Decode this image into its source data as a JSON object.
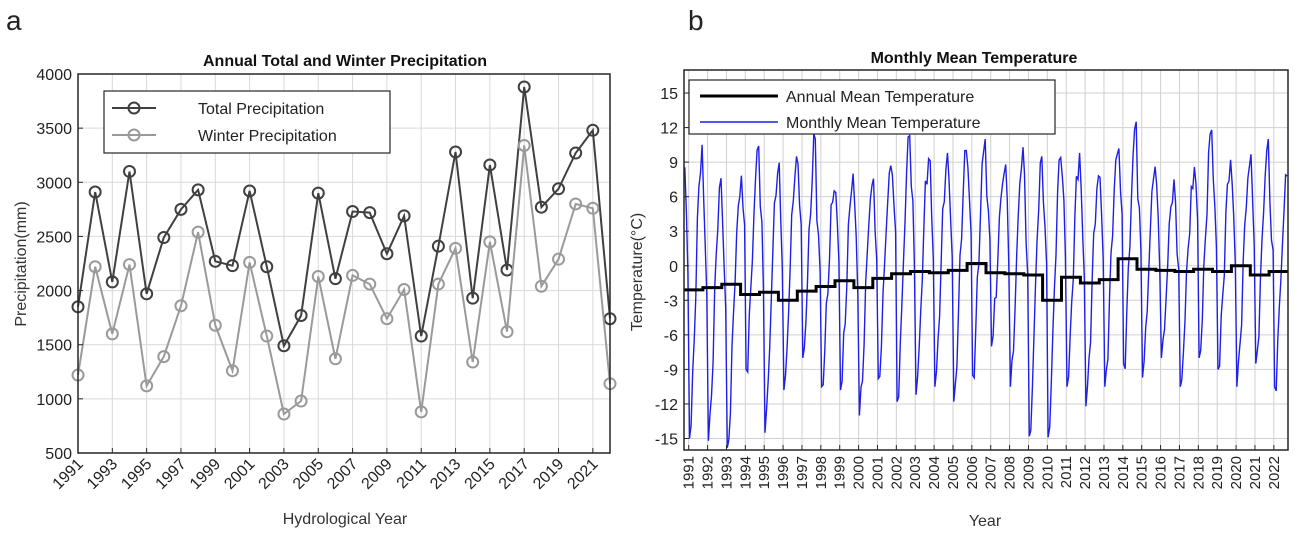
{
  "panels": {
    "a": {
      "letter": "a"
    },
    "b": {
      "letter": "b"
    }
  },
  "chart_data": [
    {
      "id": "a",
      "type": "line",
      "title": "Annual Total and Winter Precipitation",
      "xlabel": "Hydrological Year",
      "ylabel": "Precipitation(mm)",
      "xlim": [
        1991,
        2022
      ],
      "ylim": [
        500,
        4000
      ],
      "yticks": [
        500,
        1000,
        1500,
        2000,
        2500,
        3000,
        3500,
        4000
      ],
      "xticks": [
        1991,
        1993,
        1995,
        1997,
        1999,
        2001,
        2003,
        2005,
        2007,
        2009,
        2011,
        2013,
        2015,
        2017,
        2019,
        2021
      ],
      "grid": true,
      "legend": "top-left",
      "x": [
        1991,
        1992,
        1993,
        1994,
        1995,
        1996,
        1997,
        1998,
        1999,
        2000,
        2001,
        2002,
        2003,
        2004,
        2005,
        2006,
        2007,
        2008,
        2009,
        2010,
        2011,
        2012,
        2013,
        2014,
        2015,
        2016,
        2017,
        2018,
        2019,
        2020,
        2021,
        2022
      ],
      "series": [
        {
          "name": "Total Precipitation",
          "color": "#404040",
          "values": [
            1850,
            2910,
            2080,
            3100,
            1970,
            2490,
            2750,
            2930,
            2270,
            2230,
            2920,
            2220,
            1490,
            1770,
            2900,
            2110,
            2730,
            2720,
            2340,
            2690,
            1580,
            2410,
            3280,
            1930,
            3160,
            2190,
            3880,
            2770,
            2940,
            3270,
            3480,
            1740
          ]
        },
        {
          "name": "Winter Precipitation",
          "color": "#9a9a9a",
          "values": [
            1220,
            2220,
            1600,
            2240,
            1120,
            1390,
            1860,
            2540,
            1680,
            1260,
            2260,
            1580,
            860,
            980,
            2130,
            1370,
            2140,
            2060,
            1740,
            2010,
            880,
            2060,
            2390,
            1340,
            2450,
            1620,
            3340,
            2040,
            2290,
            2800,
            2760,
            1140
          ]
        }
      ]
    },
    {
      "id": "b",
      "type": "line",
      "title": "Monthly Mean Temperature",
      "xlabel": "Year",
      "ylabel": "Temperature(°C)",
      "xlim": [
        1990.75,
        2022.75
      ],
      "ylim": [
        -16,
        17
      ],
      "yticks": [
        -15,
        -12,
        -9,
        -6,
        -3,
        0,
        3,
        6,
        9,
        12,
        15
      ],
      "xticks": [
        1991,
        1992,
        1993,
        1994,
        1995,
        1996,
        1997,
        1998,
        1999,
        2000,
        2001,
        2002,
        2003,
        2004,
        2005,
        2006,
        2007,
        2008,
        2009,
        2010,
        2011,
        2012,
        2013,
        2014,
        2015,
        2016,
        2017,
        2018,
        2019,
        2020,
        2021,
        2022
      ],
      "grid": true,
      "legend": "top-left",
      "annual_series": {
        "name": "Annual Mean Temperature",
        "color": "#000000",
        "years": [
          1991,
          1992,
          1993,
          1994,
          1995,
          1996,
          1997,
          1998,
          1999,
          2000,
          2001,
          2002,
          2003,
          2004,
          2005,
          2006,
          2007,
          2008,
          2009,
          2010,
          2011,
          2012,
          2013,
          2014,
          2015,
          2016,
          2017,
          2018,
          2019,
          2020,
          2021,
          2022
        ],
        "values": [
          -2.1,
          -1.9,
          -1.6,
          -2.5,
          -2.3,
          -3.0,
          -2.2,
          -1.8,
          -1.3,
          -1.9,
          -1.1,
          -0.7,
          -0.5,
          -0.6,
          -0.4,
          0.2,
          -0.6,
          -0.7,
          -0.8,
          -3.0,
          -1.0,
          -1.5,
          -1.2,
          0.6,
          -0.3,
          -0.4,
          -0.5,
          -0.3,
          -0.5,
          0.0,
          -0.8,
          -0.5
        ]
      },
      "monthly_series": {
        "name": "Monthly Mean Temperature",
        "color": "#1f1fe6",
        "start": "1990-10",
        "end": "2022-09",
        "summer_peak": [
          10.5,
          7.6,
          6.0,
          10.4,
          8.0,
          9.5,
          11.0,
          6.5,
          8.0,
          7.0,
          8.7,
          11.3,
          9.3,
          9.8,
          10.0,
          11.0,
          8.0,
          10.3,
          9.5,
          9.4,
          9.8,
          7.8,
          9.7,
          12.5,
          8.6,
          7.5,
          6.7,
          11.8,
          9.2,
          8.7,
          11.0,
          7.8
        ],
        "winter_low": [
          -15.0,
          -15.2,
          -15.8,
          -9.0,
          -14.5,
          -10.8,
          -8.0,
          -10.5,
          -10.8,
          -13.0,
          -9.8,
          -11.8,
          -11.2,
          -10.5,
          -11.8,
          -9.5,
          -7.0,
          -10.5,
          -14.8,
          -14.9,
          -10.5,
          -12.2,
          -10.5,
          -8.5,
          -9.7,
          -8.0,
          -10.5,
          -8.0,
          -9.0,
          -10.5,
          -8.5,
          -10.5
        ]
      }
    }
  ]
}
